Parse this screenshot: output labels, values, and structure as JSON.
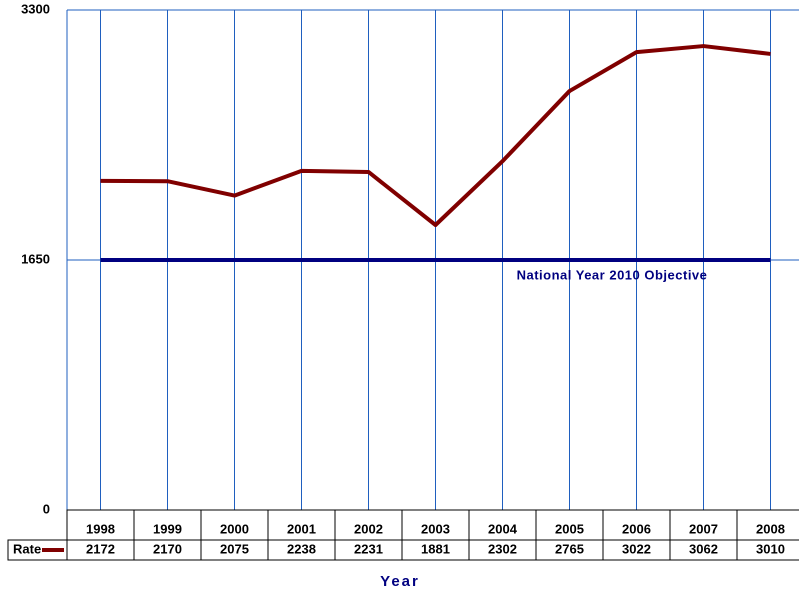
{
  "chart_data": {
    "type": "line",
    "categories": [
      "1998",
      "1999",
      "2000",
      "2001",
      "2002",
      "2003",
      "2004",
      "2005",
      "2006",
      "2007",
      "2008"
    ],
    "series": [
      {
        "name": "Rate",
        "color": "#800000",
        "values": [
          2172,
          2170,
          2075,
          2238,
          2231,
          1881,
          2302,
          2765,
          3022,
          3062,
          3010
        ]
      }
    ],
    "ylim": [
      0,
      3300
    ],
    "yticks": [
      0,
      1650,
      3300
    ],
    "grid": true,
    "reference_line": {
      "value": 1650,
      "label": "National Year 2010 Objective",
      "color": "#000080"
    },
    "x_label": "Year"
  }
}
